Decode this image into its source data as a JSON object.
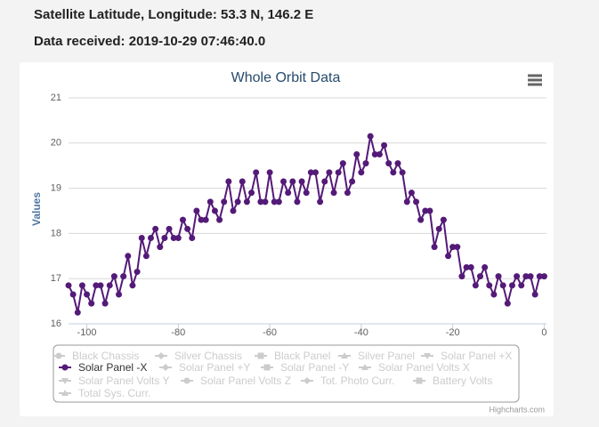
{
  "header": {
    "location": "Satellite Latitude, Longitude: 53.3 N, 146.2 E",
    "received": "Data received: 2019-10-29 07:46:40.0"
  },
  "chart_data": {
    "type": "line",
    "title": "Whole Orbit Data",
    "y_label": "Values",
    "credits": "Highcharts.com",
    "x": [
      -104,
      -103,
      -102,
      -101,
      -100,
      -99,
      -98,
      -97,
      -96,
      -95,
      -94,
      -93,
      -92,
      -91,
      -90,
      -89,
      -88,
      -87,
      -86,
      -85,
      -84,
      -83,
      -82,
      -81,
      -80,
      -79,
      -78,
      -77,
      -76,
      -75,
      -74,
      -73,
      -72,
      -71,
      -70,
      -69,
      -68,
      -67,
      -66,
      -65,
      -64,
      -63,
      -62,
      -61,
      -60,
      -59,
      -58,
      -57,
      -56,
      -55,
      -54,
      -53,
      -52,
      -51,
      -50,
      -49,
      -48,
      -47,
      -46,
      -45,
      -44,
      -43,
      -42,
      -41,
      -40,
      -39,
      -38,
      -37,
      -36,
      -35,
      -34,
      -33,
      -32,
      -31,
      -30,
      -29,
      -28,
      -27,
      -26,
      -25,
      -24,
      -23,
      -22,
      -21,
      -20,
      -19,
      -18,
      -17,
      -16,
      -15,
      -14,
      -13,
      -12,
      -11,
      -10,
      -9,
      -8,
      -7,
      -6,
      -5,
      -4,
      -3,
      -2,
      -1,
      0
    ],
    "series": [
      {
        "name": "Solar Panel -X",
        "color": "#541a78",
        "values": [
          16.85,
          16.65,
          16.25,
          16.85,
          16.65,
          16.45,
          16.85,
          16.85,
          16.45,
          16.85,
          17.05,
          16.65,
          17.05,
          17.5,
          16.85,
          17.15,
          17.9,
          17.5,
          17.9,
          18.1,
          17.7,
          17.9,
          18.1,
          17.9,
          17.9,
          18.3,
          18.1,
          17.9,
          18.5,
          18.3,
          18.3,
          18.7,
          18.5,
          18.3,
          18.7,
          19.15,
          18.5,
          18.7,
          19.15,
          18.7,
          18.9,
          19.35,
          18.7,
          18.7,
          19.35,
          18.7,
          18.7,
          19.15,
          18.9,
          19.15,
          18.7,
          19.15,
          18.9,
          19.35,
          19.35,
          18.7,
          19.15,
          19.35,
          18.9,
          19.35,
          19.55,
          18.9,
          19.15,
          19.75,
          19.35,
          19.55,
          20.15,
          19.75,
          19.75,
          19.95,
          19.55,
          19.35,
          19.55,
          19.35,
          18.7,
          18.9,
          18.7,
          18.3,
          18.5,
          18.5,
          17.7,
          18.1,
          18.3,
          17.5,
          17.7,
          17.7,
          17.05,
          17.25,
          17.25,
          16.85,
          17.05,
          17.25,
          16.85,
          16.65,
          17.05,
          16.85,
          16.45,
          16.85,
          17.05,
          16.85,
          17.05,
          17.05,
          16.65,
          17.05,
          17.05
        ]
      }
    ],
    "legend_items": [
      {
        "name": "Black Chassis",
        "visible": false
      },
      {
        "name": "Silver Chassis",
        "visible": false
      },
      {
        "name": "Black Panel",
        "visible": false
      },
      {
        "name": "Silver Panel",
        "visible": false
      },
      {
        "name": "Solar Panel +X",
        "visible": false
      },
      {
        "name": "Solar Panel -X",
        "visible": true
      },
      {
        "name": "Solar Panel +Y",
        "visible": false
      },
      {
        "name": "Solar Panel -Y",
        "visible": false
      },
      {
        "name": "Solar Panel Volts X",
        "visible": false
      },
      {
        "name": "Solar Panel Volts Y",
        "visible": false
      },
      {
        "name": "Solar Panel Volts Z",
        "visible": false
      },
      {
        "name": "Tot. Photo Curr.",
        "visible": false
      },
      {
        "name": "Battery Volts",
        "visible": false
      },
      {
        "name": "Total Sys. Curr.",
        "visible": false
      }
    ],
    "xlim": [
      -104,
      0.5
    ],
    "xticks": [
      -100,
      -80,
      -60,
      -40,
      -20,
      0
    ],
    "ylim": [
      16,
      21
    ],
    "yticks": [
      16,
      17,
      18,
      19,
      20,
      21
    ],
    "grid": true
  }
}
